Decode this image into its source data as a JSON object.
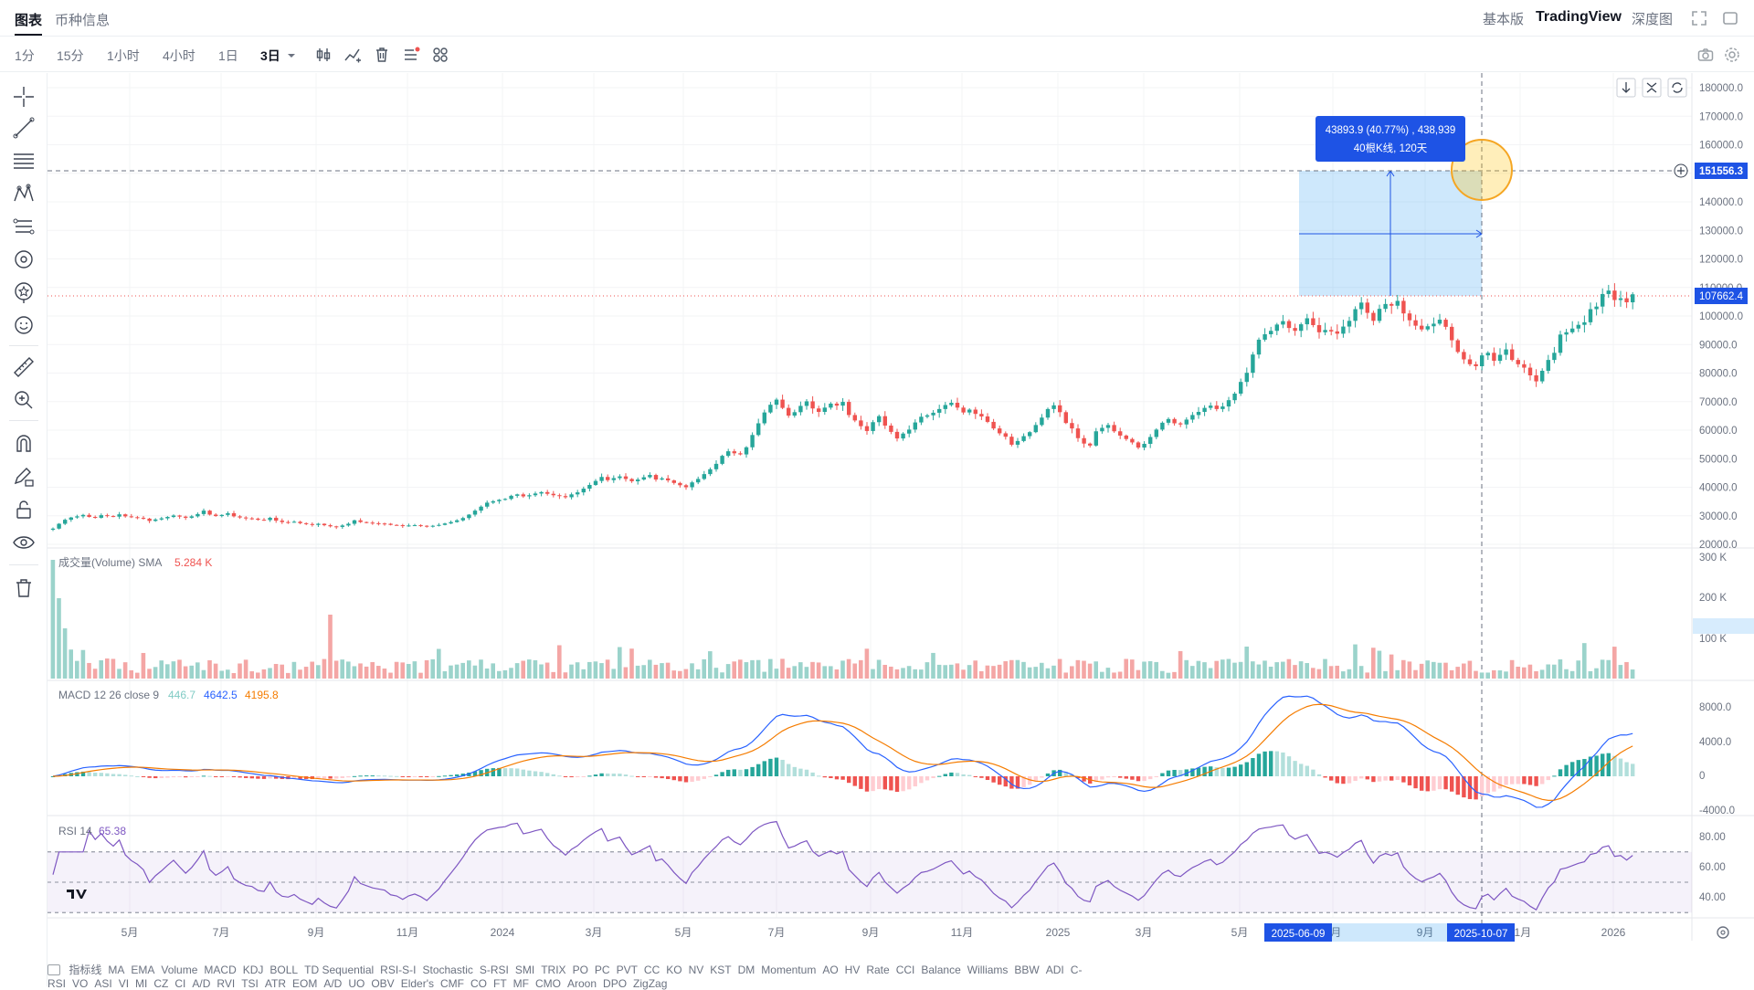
{
  "topbar": {
    "tabs": [
      {
        "label": "图表",
        "active": true
      },
      {
        "label": "币种信息",
        "active": false
      }
    ],
    "right": {
      "basic": "基本版",
      "tradingview": "TradingView",
      "depth": "深度图"
    }
  },
  "toolbar": {
    "intervals": [
      {
        "label": "1分",
        "active": false
      },
      {
        "label": "15分",
        "active": false
      },
      {
        "label": "1小时",
        "active": false
      },
      {
        "label": "4小时",
        "active": false
      },
      {
        "label": "1日",
        "active": false
      },
      {
        "label": "3日",
        "active": true
      }
    ],
    "tools": [
      "candle-type-icon",
      "indicator-icon",
      "trash-icon",
      "list-icon",
      "grid-icon"
    ]
  },
  "left_tools": [
    "crosshair-icon",
    "trendline-icon",
    "parallel-lines-icon",
    "pattern-icon",
    "fib-icon",
    "brush-icon",
    "star-icon",
    "emoji-icon",
    "ruler-icon",
    "zoom-in-icon",
    "magnet-icon",
    "pencil-lock-icon",
    "unlock-icon",
    "eye-icon",
    "delete-icon"
  ],
  "price_axis": {
    "labels": [
      "180000.0",
      "170000.0",
      "160000.0",
      "150000.0",
      "140000.0",
      "130000.0",
      "120000.0",
      "110000.0",
      "100000.0",
      "90000.0",
      "80000.0",
      "70000.0",
      "60000.0",
      "50000.0",
      "40000.0",
      "30000.0",
      "20000.0"
    ],
    "crosshair_price": "151556.3",
    "last_price": "107662.4"
  },
  "measure": {
    "line1": "43893.9 (40.77%) , 438,939",
    "line2": "40根K线, 120天"
  },
  "volume_pane": {
    "label": "成交量(Volume) SMA",
    "value": "5.284 K",
    "axis": [
      "300 K",
      "200 K",
      "100 K"
    ]
  },
  "macd_pane": {
    "label": "MACD 12 26 close 9",
    "v1": "446.7",
    "v2": "4642.5",
    "v3": "4195.8",
    "axis": [
      "8000.0",
      "4000.0",
      "0",
      "-4000.0"
    ]
  },
  "rsi_pane": {
    "label": "RSI 14",
    "value": "65.38",
    "axis": [
      "80.00",
      "60.00",
      "40.00"
    ]
  },
  "time_axis": {
    "labels": [
      "5月",
      "7月",
      "9月",
      "11月",
      "2024",
      "3月",
      "5月",
      "7月",
      "9月",
      "11月",
      "2025",
      "3月",
      "5月",
      "7月",
      "9月",
      "11月",
      "2026"
    ],
    "highlight_start": "2025-06-09",
    "highlight_end": "2025-10-07"
  },
  "indicators": [
    "指标线",
    "MA",
    "EMA",
    "Volume",
    "MACD",
    "KDJ",
    "BOLL",
    "TD Sequential",
    "RSI-S-I",
    "Stochastic",
    "S-RSI",
    "SMI",
    "TRIX",
    "PO",
    "PC",
    "PVT",
    "CC",
    "KO",
    "NV",
    "KST",
    "DM",
    "Momentum",
    "AO",
    "HV",
    "Rate",
    "CCI",
    "Balance",
    "Williams",
    "BBW",
    "ADI",
    "C-RSI",
    "VO",
    "ASI",
    "VI",
    "MI",
    "CZ",
    "CI",
    "A/D",
    "RVI",
    "TSI",
    "ATR",
    "EOM",
    "A/D",
    "UO",
    "OBV",
    "Elder's",
    "CMF",
    "CO",
    "FT",
    "MF",
    "CMO",
    "Aroon",
    "DPO",
    "ZigZag"
  ],
  "colors": {
    "up": "#26a69a",
    "down": "#ef5350",
    "accent": "#1e53e5",
    "macd": "#2962ff",
    "signal": "#f57c00",
    "rsi": "#7e57c2"
  },
  "chart_data": {
    "type": "candlestick",
    "closes": [
      25500,
      27200,
      28600,
      29400,
      29800,
      30300,
      29600,
      29300,
      30200,
      29900,
      29700,
      30500,
      29800,
      29500,
      29300,
      29000,
      28200,
      28700,
      29100,
      29600,
      30100,
      29700,
      29300,
      29800,
      30600,
      31800,
      30400,
      29900,
      30300,
      30900,
      29800,
      29400,
      29100,
      29000,
      28600,
      28500,
      29300,
      28300,
      27800,
      27700,
      27900,
      27400,
      27100,
      26800,
      27200,
      26700,
      26300,
      26100,
      26600,
      27200,
      28400,
      27800,
      27600,
      27400,
      27300,
      27200,
      26800,
      26700,
      26400,
      26600,
      26700,
      26500,
      26200,
      26500,
      26800,
      27300,
      27800,
      28400,
      29200,
      30400,
      31800,
      33200,
      34600,
      35100,
      35600,
      35900,
      37000,
      37500,
      36800,
      37200,
      37800,
      38300,
      37700,
      37200,
      36900,
      36500,
      37500,
      38200,
      39500,
      40800,
      42200,
      43600,
      42500,
      43200,
      43800,
      42900,
      42100,
      42700,
      43500,
      44300,
      42700,
      43100,
      42400,
      41500,
      40700,
      40000,
      41700,
      42900,
      44600,
      46300,
      48200,
      51000,
      52600,
      51900,
      51500,
      54000,
      58300,
      62400,
      66200,
      68900,
      70700,
      67800,
      65100,
      66300,
      68500,
      70100,
      67600,
      66400,
      67900,
      69300,
      68600,
      69900,
      65300,
      63400,
      61400,
      59700,
      62800,
      64900,
      61600,
      59400,
      57100,
      58800,
      60200,
      62700,
      64700,
      65200,
      66100,
      67400,
      68800,
      69600,
      67900,
      66200,
      67200,
      65700,
      64800,
      62900,
      60600,
      58900,
      57700,
      54900,
      56200,
      57900,
      59300,
      61800,
      64400,
      67400,
      68700,
      66300,
      62500,
      60600,
      57200,
      55300,
      54600,
      59600,
      60800,
      61800,
      59600,
      58100,
      56900,
      55700,
      53900,
      55200,
      57600,
      60200,
      62600,
      63900,
      62400,
      62000,
      63700,
      65300,
      66400,
      67800,
      68600,
      67400,
      68300,
      70500,
      72800,
      76900,
      80100,
      86500,
      91700,
      93600,
      94800,
      97000,
      98200,
      95800,
      94800,
      97100,
      99200,
      96800,
      94300,
      95100,
      94600,
      93800,
      96300,
      98300,
      102400,
      104700,
      101100,
      98300,
      102500,
      104200,
      103600,
      105300,
      100900,
      98500,
      96600,
      95300,
      96400,
      97300,
      98700,
      96200,
      91500,
      87400,
      84800,
      83100,
      82400,
      86200,
      87100,
      84300,
      86400,
      88300,
      84600,
      83100,
      81900,
      79200,
      77100,
      80800,
      84600,
      87100,
      93500,
      94300,
      95600,
      96900,
      97800,
      102400,
      103300,
      107700,
      108900,
      105600,
      106200,
      104800,
      107600
    ]
  }
}
